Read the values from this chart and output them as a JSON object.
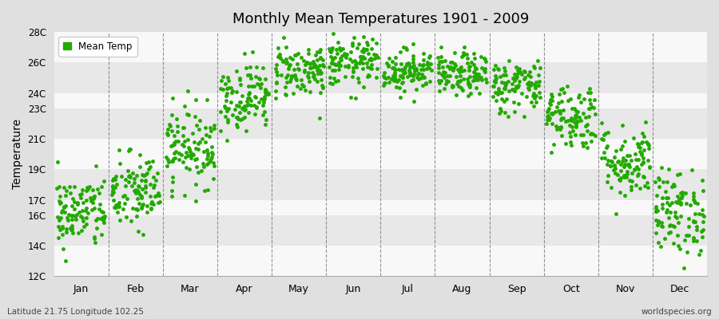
{
  "title": "Monthly Mean Temperatures 1901 - 2009",
  "ylabel": "Temperature",
  "dot_color": "#22aa00",
  "legend_label": "Mean Temp",
  "footnote": "worldspecies.org",
  "footnote2": "Latitude 21.75 Longitude 102.25",
  "ylim": [
    12,
    28
  ],
  "yticks": [
    12,
    14,
    16,
    17,
    19,
    21,
    23,
    24,
    26,
    28
  ],
  "ytick_labels": [
    "12C",
    "14C",
    "16C",
    "17C",
    "19C",
    "21C",
    "23C",
    "24C",
    "26C",
    "28C"
  ],
  "months": [
    "Jan",
    "Feb",
    "Mar",
    "Apr",
    "May",
    "Jun",
    "Jul",
    "Aug",
    "Sep",
    "Oct",
    "Nov",
    "Dec"
  ],
  "mean_temps": [
    16.2,
    17.5,
    20.5,
    23.8,
    25.5,
    26.0,
    25.5,
    25.2,
    24.5,
    22.5,
    19.5,
    16.2
  ],
  "std_temps": [
    1.2,
    1.3,
    1.3,
    1.1,
    0.9,
    0.8,
    0.7,
    0.7,
    0.9,
    1.1,
    1.2,
    1.4
  ],
  "n_years": 109,
  "seed": 42,
  "marker_size": 3.5,
  "dpi": 100,
  "figsize": [
    9.0,
    4.0
  ],
  "stripe_colors": [
    "#f8f8f8",
    "#e8e8e8"
  ],
  "fig_bg": "#e0e0e0",
  "plot_bg": "#f0f0f0"
}
